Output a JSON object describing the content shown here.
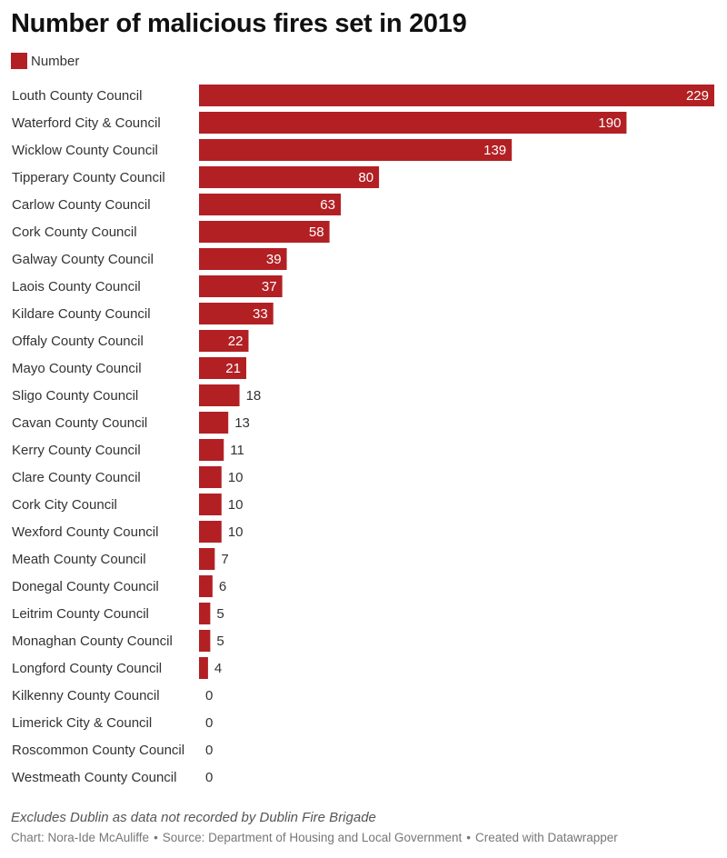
{
  "colors": {
    "bar": "#b22024",
    "label_inside": "#ffffff",
    "label_outside": "#333333",
    "category": "#333333"
  },
  "chart_data": {
    "type": "bar",
    "orientation": "horizontal",
    "title": "Number of malicious fires set in 2019",
    "legend": [
      "Number"
    ],
    "legend_position": "top-left",
    "xlim": [
      0,
      229
    ],
    "grid": false,
    "categories": [
      "Louth County Council",
      "Waterford City & Council",
      "Wicklow County Council",
      "Tipperary County Council",
      "Carlow County Council",
      "Cork County Council",
      "Galway County Council",
      "Laois County Council",
      "Kildare County Council",
      "Offaly County Council",
      "Mayo County Council",
      "Sligo County Council",
      "Cavan County Council",
      "Kerry County Council",
      "Clare County Council",
      "Cork City Council",
      "Wexford County Council",
      "Meath County Council",
      "Donegal County Council",
      "Leitrim County Council",
      "Monaghan County Council",
      "Longford County Council",
      "Kilkenny County Council",
      "Limerick City & Council",
      "Roscommon County Council",
      "Westmeath County Council"
    ],
    "series": [
      {
        "name": "Number",
        "values": [
          229,
          190,
          139,
          80,
          63,
          58,
          39,
          37,
          33,
          22,
          21,
          18,
          13,
          11,
          10,
          10,
          10,
          7,
          6,
          5,
          5,
          4,
          0,
          0,
          0,
          0
        ]
      }
    ]
  },
  "notes": "Excludes Dublin as data not recorded by Dublin Fire Brigade",
  "footer": {
    "chart_credit": "Chart: Nora-Ide McAuliffe",
    "source": "Source: Department of Housing and Local Government",
    "created_with": "Created with Datawrapper"
  }
}
